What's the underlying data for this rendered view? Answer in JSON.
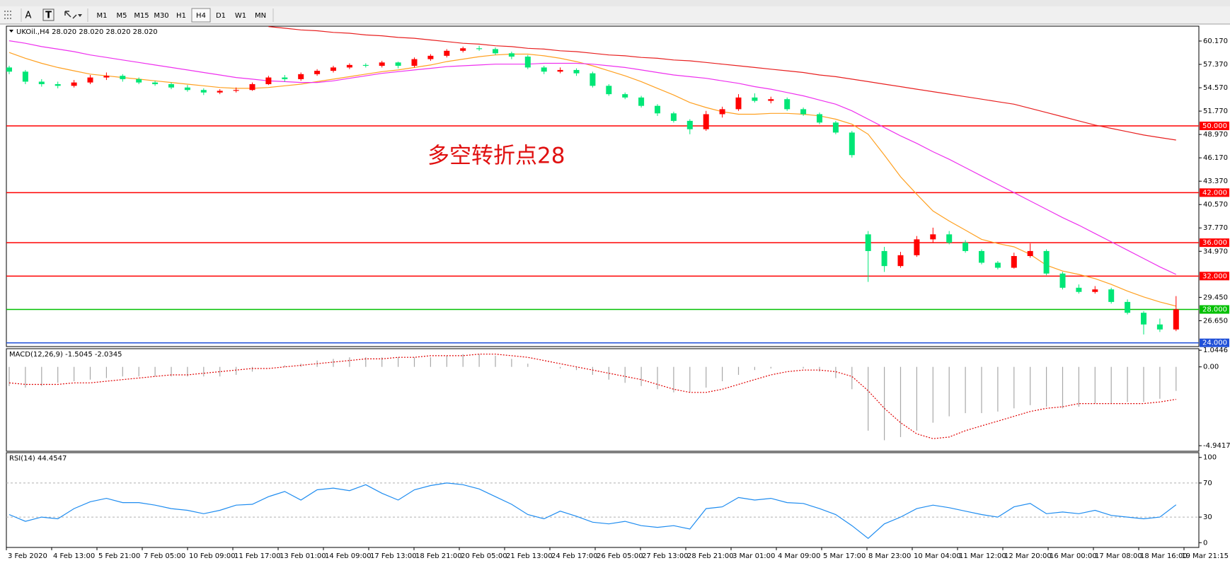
{
  "toolbar": {
    "tools": [
      "A",
      "T"
    ],
    "timeframes": [
      "M1",
      "M5",
      "M15",
      "M30",
      "H1",
      "H4",
      "D1",
      "W1",
      "MN"
    ],
    "selected": "H4"
  },
  "time_labels": [
    "3 Feb 2020",
    "4 Feb 13:00",
    "5 Feb 21:00",
    "7 Feb 05:00",
    "10 Feb 09:00",
    "11 Feb 17:00",
    "13 Feb 01:00",
    "14 Feb 09:00",
    "17 Feb 13:00",
    "18 Feb 21:00",
    "20 Feb 05:00",
    "21 Feb 13:00",
    "24 Feb 17:00",
    "26 Feb 05:00",
    "27 Feb 13:00",
    "28 Feb 21:00",
    "3 Mar 01:00",
    "4 Mar 09:00",
    "5 Mar 17:00",
    "8 Mar 23:00",
    "10 Mar 04:00",
    "11 Mar 12:00",
    "12 Mar 20:00",
    "16 Mar 00:00",
    "17 Mar 08:00",
    "18 Mar 16:00",
    "19 Mar 21:15"
  ],
  "chart_data": [
    {
      "type": "candlestick",
      "title": "UKOil.,H4  28.020 28.020 28.020 28.020",
      "annotation": "多空转折点28",
      "up_color": "#ff0000",
      "down_color": "#00e676",
      "ylim": [
        23.55,
        61.95
      ],
      "yticks": [
        {
          "value": 60.17,
          "label": "60.170"
        },
        {
          "value": 57.37,
          "label": "57.370"
        },
        {
          "value": 54.57,
          "label": "54.570"
        },
        {
          "value": 51.77,
          "label": "51.770"
        },
        {
          "value": 48.97,
          "label": "48.970"
        },
        {
          "value": 46.17,
          "label": "46.170"
        },
        {
          "value": 43.37,
          "label": "43.370"
        },
        {
          "value": 40.57,
          "label": "40.570"
        },
        {
          "value": 37.77,
          "label": "37.770"
        },
        {
          "value": 34.97,
          "label": "34.970"
        },
        {
          "value": 29.45,
          "label": "29.450"
        },
        {
          "value": 26.65,
          "label": "26.650"
        }
      ],
      "levels": [
        {
          "value": 50,
          "label": "50.000",
          "color": "#ff0000"
        },
        {
          "value": 42,
          "label": "42.000",
          "color": "#ff0000"
        },
        {
          "value": 36,
          "label": "36.000",
          "color": "#ff0000"
        },
        {
          "value": 32,
          "label": "32.000",
          "color": "#ff0000"
        },
        {
          "value": 28,
          "label": "28.000",
          "color": "#00c000"
        },
        {
          "value": 24,
          "label": "24.000",
          "color": "#2050d8"
        }
      ],
      "ohlc": [
        [
          57.0,
          57.2,
          56.2,
          56.5
        ],
        [
          56.5,
          56.7,
          55.0,
          55.3
        ],
        [
          55.3,
          55.6,
          54.7,
          55.0
        ],
        [
          55.0,
          55.3,
          54.5,
          54.8
        ],
        [
          54.8,
          55.5,
          54.6,
          55.2
        ],
        [
          55.2,
          56.1,
          55.0,
          55.8
        ],
        [
          55.8,
          56.4,
          55.5,
          56.0
        ],
        [
          56.0,
          56.2,
          55.3,
          55.6
        ],
        [
          55.6,
          55.8,
          55.0,
          55.2
        ],
        [
          55.2,
          55.4,
          54.8,
          55.0
        ],
        [
          55.0,
          55.2,
          54.4,
          54.6
        ],
        [
          54.6,
          54.9,
          54.1,
          54.3
        ],
        [
          54.3,
          54.5,
          53.7,
          54.0
        ],
        [
          54.0,
          54.4,
          53.8,
          54.2
        ],
        [
          54.2,
          54.6,
          54.0,
          54.3
        ],
        [
          54.3,
          55.2,
          54.2,
          55.0
        ],
        [
          55.0,
          56.0,
          54.9,
          55.8
        ],
        [
          55.8,
          56.1,
          55.3,
          55.6
        ],
        [
          55.6,
          56.4,
          55.4,
          56.2
        ],
        [
          56.2,
          56.8,
          56.0,
          56.6
        ],
        [
          56.6,
          57.2,
          56.4,
          57.0
        ],
        [
          57.0,
          57.5,
          56.8,
          57.3
        ],
        [
          57.3,
          57.5,
          57.0,
          57.2
        ],
        [
          57.2,
          57.8,
          57.0,
          57.6
        ],
        [
          57.6,
          57.7,
          56.9,
          57.2
        ],
        [
          57.2,
          58.2,
          57.0,
          58.0
        ],
        [
          58.0,
          58.6,
          57.8,
          58.4
        ],
        [
          58.4,
          59.2,
          58.2,
          59.0
        ],
        [
          59.0,
          59.5,
          58.8,
          59.3
        ],
        [
          59.3,
          59.6,
          59.0,
          59.2
        ],
        [
          59.2,
          59.4,
          58.5,
          58.7
        ],
        [
          58.7,
          58.9,
          58.0,
          58.3
        ],
        [
          58.3,
          58.5,
          56.8,
          57.0
        ],
        [
          57.0,
          57.2,
          56.2,
          56.5
        ],
        [
          56.5,
          57.0,
          56.3,
          56.7
        ],
        [
          56.7,
          56.9,
          56.0,
          56.3
        ],
        [
          56.3,
          56.5,
          54.6,
          54.8
        ],
        [
          54.8,
          55.0,
          53.6,
          53.8
        ],
        [
          53.8,
          54.0,
          53.2,
          53.4
        ],
        [
          53.4,
          53.6,
          52.2,
          52.4
        ],
        [
          52.4,
          52.6,
          51.2,
          51.5
        ],
        [
          51.5,
          51.7,
          50.4,
          50.6
        ],
        [
          50.6,
          50.8,
          49.0,
          49.6
        ],
        [
          49.6,
          51.8,
          49.4,
          51.4
        ],
        [
          51.4,
          52.3,
          51.0,
          52.0
        ],
        [
          52.0,
          53.8,
          51.8,
          53.4
        ],
        [
          53.4,
          53.9,
          52.8,
          53.0
        ],
        [
          53.0,
          53.5,
          52.7,
          53.2
        ],
        [
          53.2,
          53.4,
          51.8,
          52.0
        ],
        [
          52.0,
          52.2,
          51.2,
          51.4
        ],
        [
          51.4,
          51.6,
          50.2,
          50.4
        ],
        [
          50.4,
          50.6,
          49.0,
          49.2
        ],
        [
          49.2,
          49.4,
          46.2,
          46.5
        ],
        [
          37.0,
          37.4,
          31.3,
          35.0
        ],
        [
          35.0,
          35.5,
          32.5,
          33.2
        ],
        [
          33.2,
          34.9,
          33.0,
          34.5
        ],
        [
          34.5,
          36.8,
          34.3,
          36.4
        ],
        [
          36.4,
          37.8,
          36.0,
          37.0
        ],
        [
          37.0,
          37.4,
          35.8,
          36.0
        ],
        [
          36.0,
          36.3,
          34.8,
          35.0
        ],
        [
          35.0,
          35.2,
          33.4,
          33.6
        ],
        [
          33.6,
          33.8,
          32.8,
          33.0
        ],
        [
          33.0,
          34.8,
          32.9,
          34.4
        ],
        [
          34.4,
          35.9,
          34.2,
          35.0
        ],
        [
          35.0,
          35.2,
          32.1,
          32.3
        ],
        [
          32.3,
          32.5,
          30.4,
          30.6
        ],
        [
          30.6,
          31.0,
          29.9,
          30.1
        ],
        [
          30.1,
          30.8,
          29.9,
          30.4
        ],
        [
          30.4,
          30.6,
          28.7,
          28.9
        ],
        [
          28.9,
          29.2,
          27.4,
          27.6
        ],
        [
          27.6,
          27.8,
          25.0,
          26.2
        ],
        [
          26.2,
          26.9,
          25.3,
          25.6
        ],
        [
          25.6,
          29.6,
          25.4,
          28.02
        ]
      ],
      "series": [
        {
          "color": "#ffa020",
          "values": [
            58.8,
            58.1,
            57.5,
            57.0,
            56.6,
            56.2,
            56.0,
            55.8,
            55.6,
            55.4,
            55.2,
            55.0,
            54.8,
            54.6,
            54.5,
            54.5,
            54.6,
            54.8,
            55.0,
            55.3,
            55.6,
            55.9,
            56.2,
            56.5,
            56.7,
            57.0,
            57.3,
            57.7,
            58.0,
            58.3,
            58.5,
            58.6,
            58.6,
            58.4,
            58.1,
            57.7,
            57.2,
            56.6,
            56.0,
            55.3,
            54.5,
            53.7,
            52.8,
            52.2,
            51.7,
            51.4,
            51.4,
            51.5,
            51.5,
            51.4,
            51.2,
            50.8,
            50.2,
            49.0,
            46.5,
            43.9,
            41.8,
            39.8,
            38.6,
            37.5,
            36.4,
            35.9,
            35.5,
            34.6,
            33.3,
            32.6,
            32.2,
            31.7,
            31.0,
            30.2,
            29.5,
            28.9,
            28.4
          ]
        },
        {
          "color": "#ee30ee",
          "values": [
            60.2,
            59.9,
            59.5,
            59.2,
            58.9,
            58.5,
            58.2,
            57.9,
            57.6,
            57.3,
            57.0,
            56.7,
            56.4,
            56.1,
            55.8,
            55.6,
            55.4,
            55.3,
            55.2,
            55.2,
            55.4,
            55.7,
            56.0,
            56.3,
            56.5,
            56.7,
            56.9,
            57.1,
            57.2,
            57.3,
            57.4,
            57.4,
            57.4,
            57.5,
            57.5,
            57.5,
            57.4,
            57.2,
            57.0,
            56.7,
            56.4,
            56.1,
            55.9,
            55.7,
            55.4,
            55.1,
            54.7,
            54.4,
            54.0,
            53.6,
            53.1,
            52.6,
            51.8,
            50.8,
            49.8,
            48.8,
            47.9,
            46.9,
            46.0,
            45.0,
            44.0,
            43.0,
            42.0,
            41.0,
            40.0,
            39.0,
            38.1,
            37.1,
            36.1,
            35.1,
            34.1,
            33.1,
            32.2
          ]
        },
        {
          "color": "#e82020",
          "values": [
            null,
            null,
            null,
            null,
            null,
            null,
            null,
            null,
            null,
            null,
            null,
            null,
            null,
            null,
            null,
            null,
            61.9,
            61.7,
            61.5,
            61.4,
            61.2,
            61.1,
            60.9,
            60.8,
            60.6,
            60.5,
            60.3,
            60.1,
            59.9,
            59.8,
            59.6,
            59.5,
            59.3,
            59.2,
            59.0,
            58.9,
            58.7,
            58.5,
            58.4,
            58.2,
            58.1,
            57.9,
            57.8,
            57.6,
            57.4,
            57.2,
            57.0,
            56.8,
            56.6,
            56.4,
            56.1,
            55.9,
            55.6,
            55.3,
            55.0,
            54.7,
            54.4,
            54.1,
            53.8,
            53.5,
            53.2,
            52.9,
            52.6,
            52.1,
            51.6,
            51.1,
            50.6,
            50.1,
            49.7,
            49.3,
            48.9,
            48.6,
            48.3
          ]
        }
      ]
    },
    {
      "type": "macd",
      "title": "MACD(12,26,9) -1.5045 -2.0345",
      "ylim": [
        -5.29,
        1.14
      ],
      "yticks": [
        1.0446,
        {
          "value": 0,
          "label": "0.00"
        },
        -4.9417
      ],
      "series": [
        {
          "style": "histogram",
          "color": "#a8a8a8",
          "values": [
            -1.2,
            -1.3,
            -1.2,
            -1.0,
            -0.9,
            -0.8,
            -0.7,
            -0.6,
            -0.6,
            -0.6,
            -0.6,
            -0.6,
            -0.6,
            -0.6,
            -0.5,
            -0.3,
            0.0,
            0.1,
            0.2,
            0.4,
            0.5,
            0.6,
            0.6,
            0.6,
            0.6,
            0.6,
            0.6,
            0.7,
            0.8,
            0.8,
            0.7,
            0.5,
            0.2,
            0.0,
            -0.1,
            -0.2,
            -0.5,
            -0.8,
            -1.0,
            -1.2,
            -1.4,
            -1.6,
            -1.6,
            -1.3,
            -0.9,
            -0.5,
            -0.2,
            -0.1,
            0.0,
            -0.1,
            -0.3,
            -0.7,
            -1.4,
            -4.0,
            -4.6,
            -4.4,
            -4.0,
            -3.5,
            -3.1,
            -2.9,
            -2.9,
            -2.8,
            -2.6,
            -2.4,
            -2.5,
            -2.6,
            -2.5,
            -2.3,
            -2.3,
            -2.2,
            -2.2,
            -2.0,
            -1.5045
          ]
        },
        {
          "style": "dotted",
          "color": "#e00000",
          "values": [
            -1.0,
            -1.1,
            -1.1,
            -1.1,
            -1.0,
            -1.0,
            -0.9,
            -0.8,
            -0.7,
            -0.6,
            -0.5,
            -0.5,
            -0.4,
            -0.3,
            -0.2,
            -0.1,
            -0.1,
            0.0,
            0.1,
            0.2,
            0.3,
            0.4,
            0.5,
            0.5,
            0.6,
            0.6,
            0.7,
            0.7,
            0.7,
            0.8,
            0.8,
            0.7,
            0.6,
            0.4,
            0.2,
            0.0,
            -0.2,
            -0.4,
            -0.6,
            -0.8,
            -1.1,
            -1.4,
            -1.6,
            -1.6,
            -1.4,
            -1.1,
            -0.8,
            -0.5,
            -0.3,
            -0.2,
            -0.2,
            -0.3,
            -0.6,
            -1.5,
            -2.6,
            -3.5,
            -4.2,
            -4.5,
            -4.4,
            -4.0,
            -3.7,
            -3.4,
            -3.1,
            -2.8,
            -2.6,
            -2.5,
            -2.3,
            -2.3,
            -2.3,
            -2.3,
            -2.3,
            -2.2,
            -2.0345
          ]
        }
      ]
    },
    {
      "type": "line",
      "title": "RSI(14) 44.4547",
      "ylim": [
        -5.6,
        105.6
      ],
      "yticks": [
        100,
        70,
        30,
        0
      ],
      "levels": [
        70,
        30
      ],
      "series": [
        {
          "color": "#1e8cf0",
          "values": [
            33,
            25,
            30,
            28,
            40,
            48,
            52,
            47,
            47,
            44,
            40,
            38,
            34,
            38,
            44,
            45,
            54,
            60,
            50,
            62,
            64,
            61,
            68,
            58,
            50,
            62,
            67,
            70,
            68,
            63,
            54,
            45,
            33,
            28,
            37,
            31,
            24,
            22,
            25,
            20,
            18,
            20,
            16,
            40,
            42,
            53,
            50,
            52,
            47,
            46,
            40,
            33,
            20,
            5,
            22,
            30,
            40,
            44,
            41,
            37,
            33,
            30,
            42,
            46,
            34,
            36,
            34,
            38,
            32,
            30,
            28,
            30,
            44.4547
          ]
        }
      ]
    }
  ]
}
